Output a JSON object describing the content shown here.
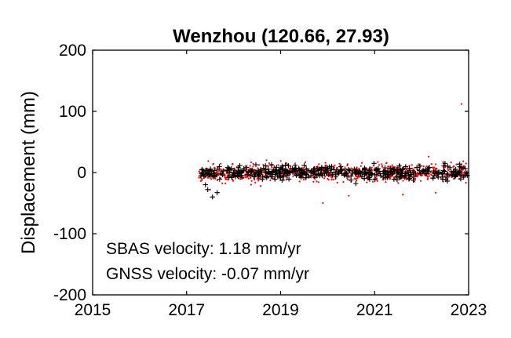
{
  "chart_data": {
    "type": "scatter",
    "title": "Wenzhou (120.66, 27.93)",
    "xlabel": "",
    "ylabel": "Displacement (mm)",
    "xlim": [
      2015,
      2023
    ],
    "ylim": [
      -200,
      200
    ],
    "x_ticks": [
      "2015",
      "2017",
      "2019",
      "2021",
      "2023"
    ],
    "y_ticks": [
      "200",
      "100",
      "0",
      "-100",
      "-200"
    ],
    "grid": false,
    "box": true,
    "annotations": [
      "SBAS velocity: 1.18 mm/yr",
      "GNSS velocity: -0.07 mm/yr"
    ],
    "series": [
      {
        "marker": "dot",
        "color": "#ff0000",
        "x_range": [
          2017.25,
          2023.0
        ],
        "y_typical_range": [
          -22,
          22
        ],
        "y_typical": 0,
        "trend": 1.18,
        "outliers": [
          {
            "x": 2022.85,
            "y": 112
          },
          {
            "x": 2019.9,
            "y": -50
          },
          {
            "x": 2020.45,
            "y": -38
          },
          {
            "x": 2021.6,
            "y": -36
          },
          {
            "x": 2022.3,
            "y": -33
          },
          {
            "x": 2017.5,
            "y": -28
          },
          {
            "x": 2018.7,
            "y": 20
          },
          {
            "x": 2022.15,
            "y": 26
          }
        ]
      },
      {
        "marker": "plus",
        "color": "#000000",
        "x_range": [
          2017.3,
          2023.0
        ],
        "y_typical_range": [
          -20,
          15
        ],
        "y_typical": 0,
        "trend": -0.07,
        "outliers": [
          {
            "x": 2017.55,
            "y": -40
          },
          {
            "x": 2017.65,
            "y": -33
          },
          {
            "x": 2017.45,
            "y": -28
          },
          {
            "x": 2017.4,
            "y": -20
          },
          {
            "x": 2020.6,
            "y": -18
          },
          {
            "x": 2022.55,
            "y": -14
          },
          {
            "x": 2019.1,
            "y": 12
          }
        ]
      }
    ]
  }
}
